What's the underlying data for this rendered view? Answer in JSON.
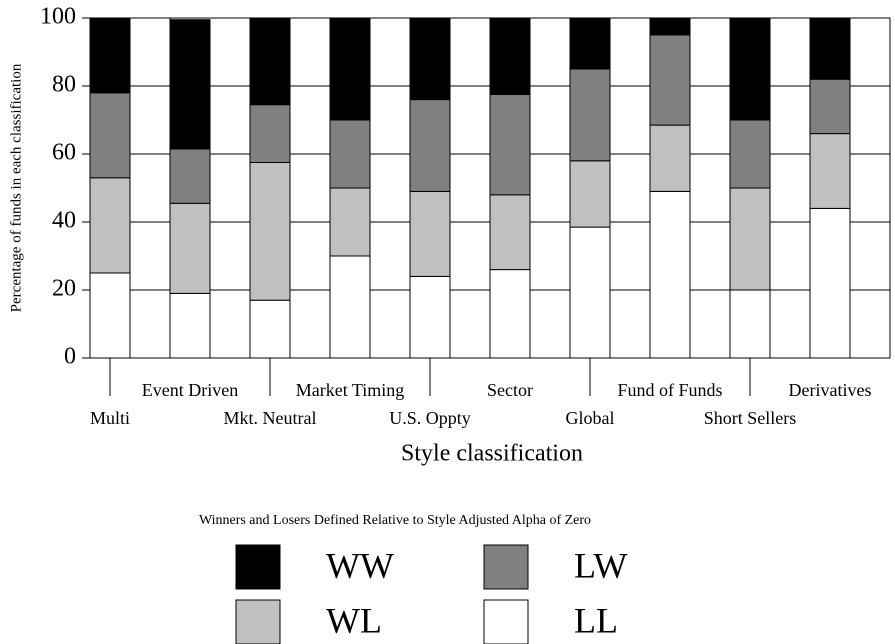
{
  "chart_data": {
    "type": "stacked_bar",
    "x_label": "Style classification",
    "y_label": "Percentage of funds in each classification",
    "legend_title": "Winners and Losers Defined Relative to Style Adjusted Alpha of Zero",
    "categories": [
      "Multi",
      "Event Driven",
      "Mkt. Neutral",
      "Market Timing",
      "U.S. Oppty",
      "Sector",
      "Global",
      "Fund of Funds",
      "Short Sellers",
      "Derivatives"
    ],
    "series": [
      {
        "name": "WW",
        "color": "#000000",
        "values": [
          22,
          38,
          25.5,
          30,
          24,
          22.5,
          15,
          5,
          30,
          18
        ]
      },
      {
        "name": "LW",
        "color": "#808080",
        "values": [
          25,
          16,
          17,
          20,
          27,
          29.5,
          27,
          26.5,
          20,
          16
        ]
      },
      {
        "name": "WL",
        "color": "#c0c0c0",
        "values": [
          28,
          26.5,
          40.5,
          20,
          25,
          22,
          19.5,
          19.5,
          30,
          22
        ]
      },
      {
        "name": "LL",
        "color": "#ffffff",
        "values": [
          25,
          19,
          17,
          30,
          24,
          26,
          38.5,
          49,
          20,
          44
        ]
      }
    ],
    "ylim": [
      0,
      100
    ],
    "yticks": [
      0,
      20,
      40,
      60,
      80,
      100
    ],
    "grid": true
  }
}
